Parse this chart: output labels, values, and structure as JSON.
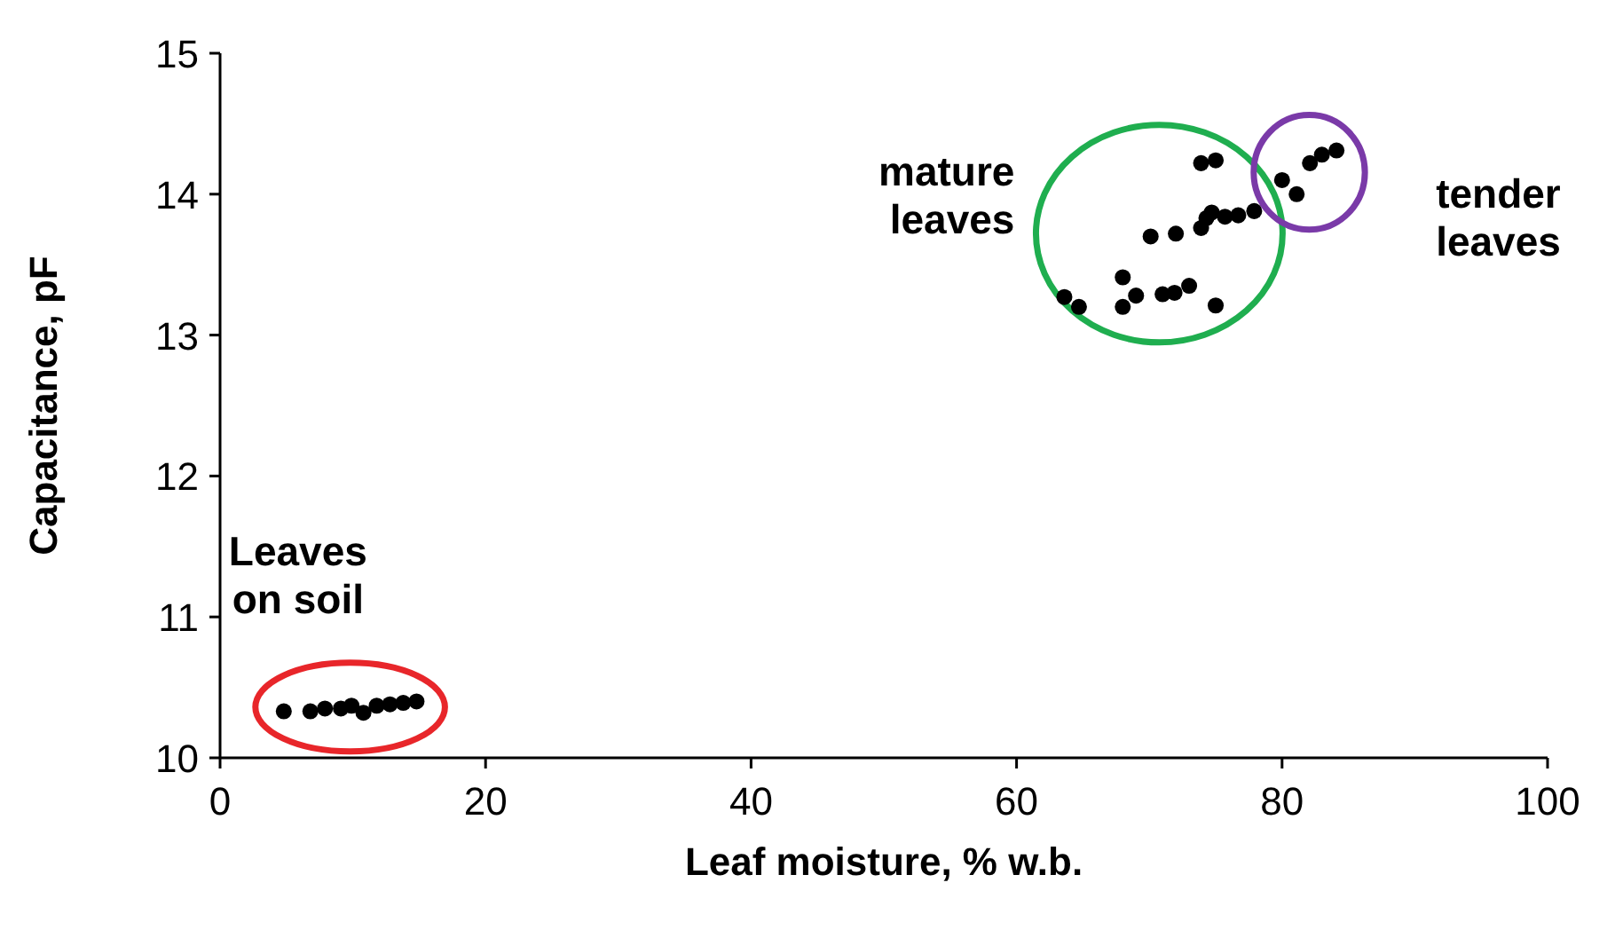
{
  "chart_data": {
    "type": "scatter",
    "xlabel": "Leaf moisture, % w.b.",
    "ylabel": "Capacitance, pF",
    "xlim": [
      0,
      100
    ],
    "xticks": [
      0,
      20,
      40,
      60,
      80,
      100
    ],
    "ylim": [
      10,
      15
    ],
    "yticks": [
      10,
      11,
      12,
      13,
      14,
      15
    ],
    "grid": false,
    "marker": "circle",
    "series": [
      {
        "color": "#000000",
        "x": [
          4.8,
          6.8,
          7.9,
          9.1,
          9.9,
          10.8,
          11.8,
          12.8,
          13.8,
          14.8
        ],
        "values": [
          10.33,
          10.33,
          10.35,
          10.35,
          10.37,
          10.32,
          10.37,
          10.38,
          10.39,
          10.4
        ]
      },
      {
        "color": "#000000",
        "x": [
          63.6,
          64.7,
          68.0,
          68.0,
          69.0,
          70.1,
          71.0,
          71.9,
          72.0,
          73.0,
          73.9,
          75.0,
          73.9,
          74.3,
          74.7,
          75.7,
          76.7,
          77.9,
          75.0
        ],
        "values": [
          13.27,
          13.2,
          13.41,
          13.2,
          13.28,
          13.7,
          13.29,
          13.3,
          13.72,
          13.35,
          14.22,
          14.24,
          13.76,
          13.83,
          13.87,
          13.84,
          13.85,
          13.88,
          13.21
        ]
      },
      {
        "color": "#000000",
        "x": [
          80.0,
          81.1,
          82.1,
          83.0,
          84.1
        ],
        "values": [
          14.1,
          14.0,
          14.22,
          14.28,
          14.31
        ]
      }
    ],
    "annotations": [
      "Leaves\non soil",
      "mature\nleaves",
      "tender\nleaves"
    ]
  }
}
